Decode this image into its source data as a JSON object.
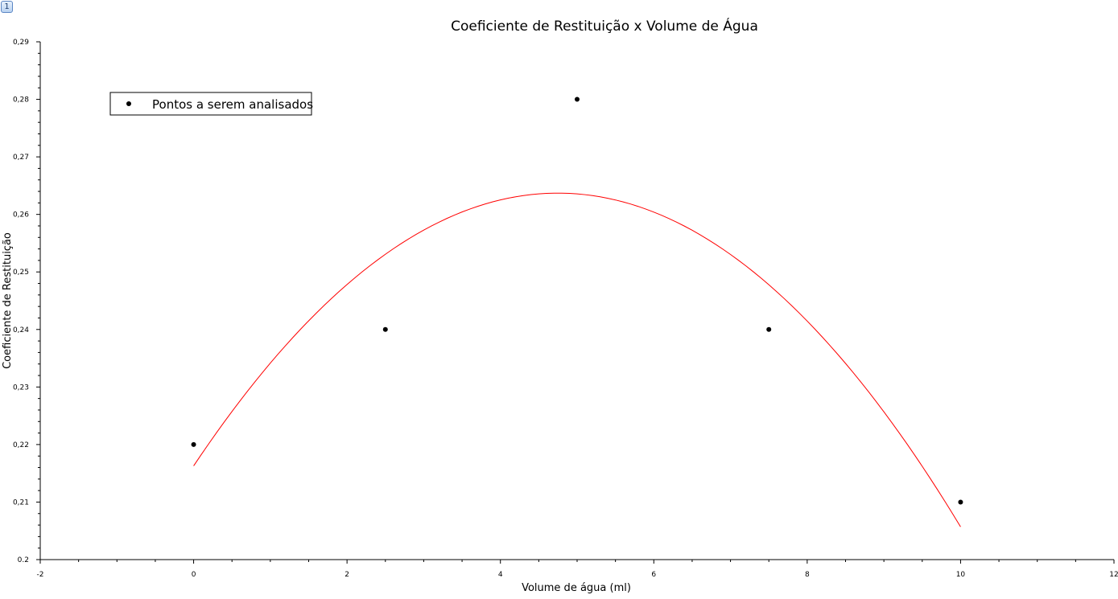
{
  "page_badge": "1",
  "chart_data": {
    "type": "scatter",
    "title": "Coeficiente de Restituição x Volume de Água",
    "xlabel": "Volume de água (ml)",
    "ylabel": "Coeficiente de Restituição",
    "xlim": [
      -2,
      12
    ],
    "ylim": [
      0.2,
      0.29
    ],
    "x_ticks": [
      -2,
      0,
      2,
      4,
      6,
      8,
      10,
      12
    ],
    "x_tick_labels": [
      "-2",
      "0",
      "2",
      "4",
      "6",
      "8",
      "10",
      "12"
    ],
    "y_ticks": [
      0.2,
      0.21,
      0.22,
      0.23,
      0.24,
      0.25,
      0.26,
      0.27,
      0.28,
      0.29
    ],
    "y_tick_labels": [
      "0.2",
      "0,21",
      "0,22",
      "0,23",
      "0,24",
      "0,25",
      "0,26",
      "0,27",
      "0,28",
      "0,29"
    ],
    "grid": false,
    "legend_position": "top-left",
    "series": [
      {
        "name": "Pontos a serem analisados",
        "type": "scatter",
        "color": "#000000",
        "x": [
          0,
          2.5,
          5,
          7.5,
          10
        ],
        "y": [
          0.22,
          0.24,
          0.28,
          0.24,
          0.21
        ]
      },
      {
        "type": "line",
        "color": "#ff0000",
        "fit": "quadratic",
        "x_range": [
          0,
          10
        ],
        "coefficients": [
          0.216286,
          0.019971,
          -0.002103
        ]
      }
    ]
  }
}
